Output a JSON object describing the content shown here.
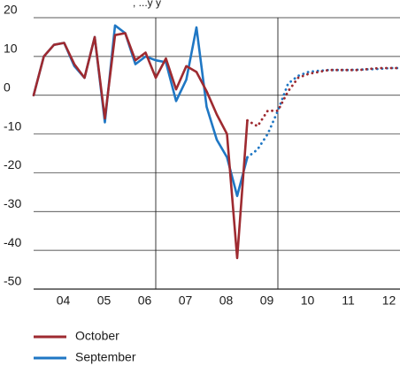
{
  "header_fragment": ", ...y y",
  "chart_data": {
    "type": "line",
    "x_categories": [
      "04",
      "05",
      "06",
      "07",
      "08",
      "09",
      "10",
      "11",
      "12"
    ],
    "ylim": [
      -50,
      20
    ],
    "yticks": [
      20,
      10,
      0,
      -10,
      -20,
      -30,
      -40,
      -50
    ],
    "yticklabels": [
      "20",
      "10",
      "0",
      "-10",
      "-20",
      "-30",
      "-40",
      "-50"
    ],
    "grid": "horizontal",
    "forecast_divider_year": 2009.75,
    "legend_placement": "bottom-left",
    "series": [
      {
        "name": "October",
        "color": "#9e2a30",
        "actual": [
          [
            2003.75,
            0
          ],
          [
            2004.0,
            10
          ],
          [
            2004.25,
            13
          ],
          [
            2004.5,
            13.5
          ],
          [
            2004.75,
            8
          ],
          [
            2005.0,
            4.5
          ],
          [
            2005.25,
            15
          ],
          [
            2005.5,
            -6
          ],
          [
            2005.75,
            15.5
          ],
          [
            2006.0,
            16
          ],
          [
            2006.25,
            9
          ],
          [
            2006.5,
            11
          ],
          [
            2006.75,
            4.5
          ],
          [
            2007.0,
            9.5
          ],
          [
            2007.25,
            1.5
          ],
          [
            2007.5,
            7.5
          ],
          [
            2007.75,
            6
          ],
          [
            2008.0,
            1
          ],
          [
            2008.25,
            -5
          ],
          [
            2008.5,
            -10
          ],
          [
            2008.75,
            -42
          ],
          [
            2009.0,
            -6.5
          ]
        ],
        "forecast": [
          [
            2009.0,
            -6.5
          ],
          [
            2009.25,
            -8
          ],
          [
            2009.5,
            -4
          ],
          [
            2009.75,
            -4
          ],
          [
            2010.0,
            1
          ],
          [
            2010.25,
            4.5
          ],
          [
            2010.5,
            5.5
          ],
          [
            2010.75,
            6
          ],
          [
            2011.0,
            6.5
          ],
          [
            2011.25,
            6.5
          ],
          [
            2011.5,
            6.5
          ],
          [
            2011.75,
            6.5
          ],
          [
            2012.0,
            6.8
          ],
          [
            2012.25,
            7
          ],
          [
            2012.5,
            7
          ],
          [
            2012.75,
            7
          ]
        ]
      },
      {
        "name": "September",
        "color": "#1f77c4",
        "actual": [
          [
            2003.75,
            0
          ],
          [
            2004.0,
            10
          ],
          [
            2004.25,
            13
          ],
          [
            2004.5,
            13.5
          ],
          [
            2004.75,
            7.5
          ],
          [
            2005.0,
            4.5
          ],
          [
            2005.25,
            15
          ],
          [
            2005.5,
            -7
          ],
          [
            2005.75,
            18
          ],
          [
            2006.0,
            16
          ],
          [
            2006.25,
            8
          ],
          [
            2006.5,
            10
          ],
          [
            2006.75,
            9
          ],
          [
            2007.0,
            8.5
          ],
          [
            2007.25,
            -1.5
          ],
          [
            2007.5,
            4
          ],
          [
            2007.75,
            17.5
          ],
          [
            2008.0,
            -3
          ],
          [
            2008.25,
            -11.5
          ],
          [
            2008.5,
            -16
          ],
          [
            2008.75,
            -26
          ],
          [
            2009.0,
            -16
          ]
        ],
        "forecast": [
          [
            2009.0,
            -16
          ],
          [
            2009.25,
            -14
          ],
          [
            2009.5,
            -10
          ],
          [
            2009.75,
            -4
          ],
          [
            2010.0,
            3
          ],
          [
            2010.25,
            5
          ],
          [
            2010.5,
            6
          ],
          [
            2010.75,
            6.3
          ],
          [
            2011.0,
            6.5
          ],
          [
            2011.25,
            6.5
          ],
          [
            2011.5,
            6.5
          ],
          [
            2011.75,
            6.6
          ],
          [
            2012.0,
            6.7
          ],
          [
            2012.25,
            6.8
          ],
          [
            2012.5,
            7
          ],
          [
            2012.75,
            7
          ]
        ]
      }
    ]
  }
}
